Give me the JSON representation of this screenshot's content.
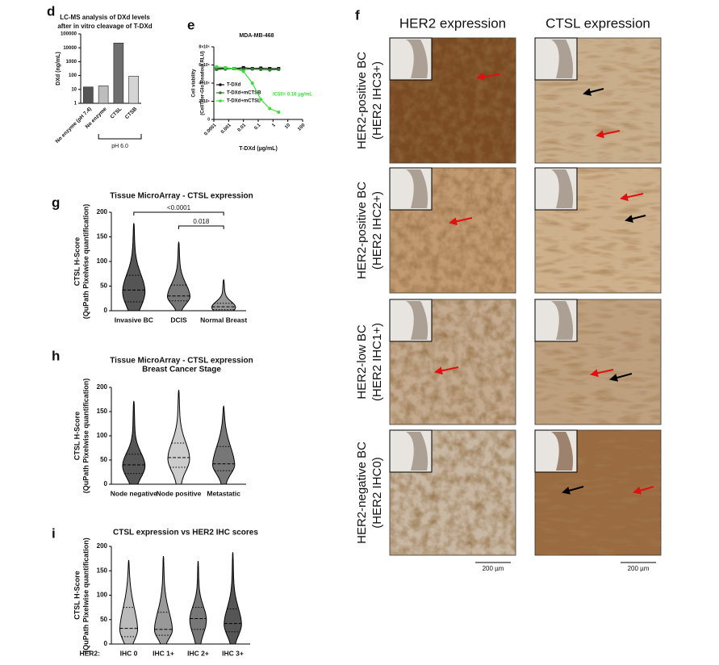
{
  "chart_data": [
    {
      "type": "bar",
      "panel_label": "d",
      "title": [
        "LC-MS analysis of DXd levels",
        "after in vitro cleavage of T-DXd"
      ],
      "ylabel": "DXd (ng/mL)",
      "categories": [
        "No enzyme (pH 7.4)",
        "No enzyme",
        "CTSL",
        "CTSB"
      ],
      "values": [
        15,
        18,
        22000,
        90
      ],
      "colors": [
        "#555555",
        "#bdbdbd",
        "#6e6e6e",
        "#d4d4d4"
      ],
      "yscale": "log",
      "ylim": [
        1,
        100000
      ],
      "yticks": [
        1,
        10,
        100,
        1000,
        10000,
        100000
      ],
      "bracket_label": "pH 6.0"
    },
    {
      "type": "line",
      "panel_label": "e",
      "title": [
        "MDA-MB-468"
      ],
      "ylabel": [
        "Cell viability",
        "(CellTiter-Glo Readout RLU)"
      ],
      "xlabel": "T-DXd (µg/mL)",
      "xscale": "log",
      "xlim": [
        0.0001,
        100
      ],
      "xticks": [
        0.0001,
        0.001,
        0.01,
        0.1,
        1,
        10,
        100
      ],
      "ylim": [
        0,
        8000000
      ],
      "yticks": [
        0,
        {
          "value": 2000000,
          "label": "2×10⁶"
        },
        {
          "value": 4000000,
          "label": "4×10⁶"
        },
        {
          "value": 6000000,
          "label": "6×10⁶"
        },
        {
          "value": 8000000,
          "label": "8×10⁶"
        }
      ],
      "x": [
        0.00015,
        0.0006,
        0.0024,
        0.01,
        0.04,
        0.15,
        0.6,
        2.4
      ],
      "series": [
        {
          "name": "T-DXd",
          "color": "#111111",
          "values": [
            5600000,
            5650000,
            5600000,
            5700000,
            5600000,
            5650000,
            5600000,
            5600000
          ]
        },
        {
          "name": "T-DXd+mCTSB",
          "color": "#2e7d32",
          "values": [
            5500000,
            5550000,
            5600000,
            5500000,
            5550000,
            5500000,
            5450000,
            5500000
          ]
        },
        {
          "name": "T-DXd+mCTSL",
          "color": "#3ddc3d",
          "values": [
            5800000,
            5700000,
            5600000,
            5300000,
            4000000,
            2200000,
            1200000,
            800000
          ]
        }
      ],
      "annotation": "IC50= 0.16 µg/mL"
    },
    {
      "type": "violin",
      "panel_label": "g",
      "title": [
        "Tissue MicroArray - CTSL expression"
      ],
      "ylabel": [
        "CTSL H-Score",
        "(QuPath Pixelwise quantification)"
      ],
      "categories": [
        "Invasive BC",
        "DCIS",
        "Normal Breast"
      ],
      "colors": [
        "#555555",
        "#777777",
        "#999999"
      ],
      "values": [
        {
          "min": 0,
          "q1": 18,
          "median": 42,
          "q3": 72,
          "max": 178
        },
        {
          "min": 0,
          "q1": 20,
          "median": 30,
          "q3": 52,
          "max": 140
        },
        {
          "min": 0,
          "q1": 2,
          "median": 8,
          "q3": 15,
          "max": 63
        }
      ],
      "ylim": [
        0,
        200
      ],
      "yticks": [
        0,
        50,
        100,
        150,
        200
      ],
      "comparisons": [
        {
          "from": 0,
          "to": 2,
          "label": "<0.0001"
        },
        {
          "from": 1,
          "to": 2,
          "label": "0.018"
        }
      ]
    },
    {
      "type": "violin",
      "panel_label": "h",
      "title": [
        "Tissue MicroArray - CTSL expression",
        "Breast Cancer Stage"
      ],
      "ylabel": [
        "CTSL H-Score",
        "(QuPath Pixelwise quantification)"
      ],
      "categories": [
        "Node negative",
        "Node positive",
        "Metastatic"
      ],
      "colors": [
        "#555555",
        "#cccccc",
        "#777777"
      ],
      "values": [
        {
          "min": 0,
          "q1": 22,
          "median": 40,
          "q3": 62,
          "max": 172
        },
        {
          "min": 0,
          "q1": 35,
          "median": 55,
          "q3": 85,
          "max": 195
        },
        {
          "min": 0,
          "q1": 28,
          "median": 42,
          "q3": 78,
          "max": 162
        }
      ],
      "ylim": [
        0,
        200
      ],
      "yticks": [
        0,
        50,
        100,
        150,
        200
      ]
    },
    {
      "type": "violin",
      "panel_label": "i",
      "title": [
        "CTSL expression vs HER2 IHC scores"
      ],
      "ylabel": [
        "CTSL H-Score",
        "(QuPath Pixelwise quantification)"
      ],
      "category_prefix": "HER2:",
      "categories": [
        "IHC 0",
        "IHC 1+",
        "IHC 2+",
        "IHC 3+"
      ],
      "colors": [
        "#bbbbbb",
        "#999999",
        "#777777",
        "#555555"
      ],
      "values": [
        {
          "min": 0,
          "q1": 15,
          "median": 32,
          "q3": 75,
          "max": 172
        },
        {
          "min": 0,
          "q1": 18,
          "median": 30,
          "q3": 65,
          "max": 180
        },
        {
          "min": 0,
          "q1": 30,
          "median": 52,
          "q3": 75,
          "max": 170
        },
        {
          "min": 0,
          "q1": 25,
          "median": 42,
          "q3": 72,
          "max": 188
        }
      ],
      "ylim": [
        0,
        200
      ],
      "yticks": [
        0,
        50,
        100,
        150,
        200
      ]
    }
  ],
  "figure_f": {
    "panel_label": "f",
    "columns": [
      "HER2 expression",
      "CTSL expression"
    ],
    "rows": [
      [
        "HER2-positive BC",
        "(HER2 IHC3+)"
      ],
      [
        "HER2-positive BC",
        "(HER2 IHC2+)"
      ],
      [
        "HER2-low BC",
        "(HER2 IHC1+)"
      ],
      [
        "HER2-negative BC",
        "(HER2 IHC0)"
      ]
    ],
    "scale_bars": [
      "200 µm",
      "200 µm"
    ]
  }
}
